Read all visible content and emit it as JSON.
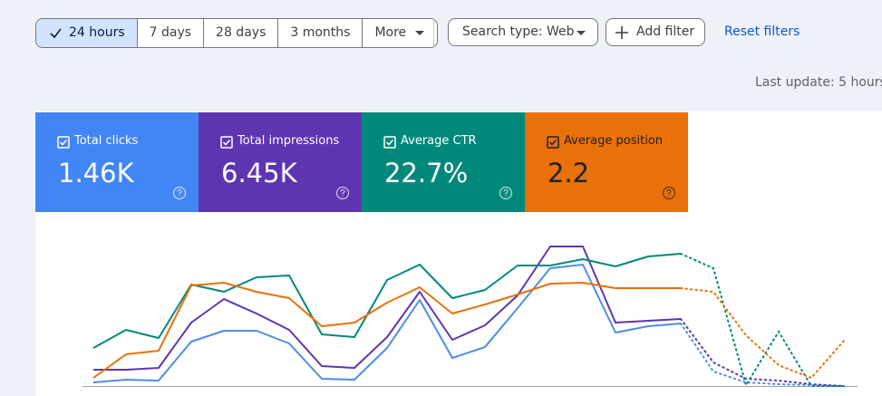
{
  "filters": {
    "time_ranges": [
      "24 hours",
      "7 days",
      "28 days",
      "3 months"
    ],
    "more": "More",
    "search_type": "Search type: Web",
    "add_filter": "Add filter",
    "reset": "Reset filters"
  },
  "last_update": "Last update: 5 hours",
  "metrics": [
    {
      "value": "1.46K",
      "color": "#4285f4"
    },
    {
      "value": "6.45K",
      "color": "#5e35b1"
    },
    {
      "value": "22.7%",
      "color": "#00897b"
    },
    {
      "value": "2.2",
      "color": "#e8710a"
    }
  ],
  "chart_data": {
    "type": "line",
    "categories": [
      null,
      null,
      null,
      null,
      null,
      null,
      null,
      null,
      null,
      null,
      null,
      null,
      null,
      null,
      null,
      null,
      null,
      null,
      null,
      null,
      null,
      null,
      null,
      null
    ],
    "ylim": [
      0,
      160
    ],
    "series": [
      {
        "name": "Total clicks",
        "color": "#4a8ee6",
        "values": [
          4,
          7,
          6,
          49,
          61,
          61,
          47,
          8,
          7,
          42,
          95,
          31,
          43,
          86,
          130,
          134,
          59,
          66,
          69,
          null,
          null,
          null,
          null,
          null
        ],
        "partial_values": [
          null,
          null,
          null,
          null,
          null,
          null,
          null,
          null,
          null,
          null,
          null,
          null,
          null,
          null,
          null,
          null,
          null,
          null,
          69,
          16,
          4,
          2,
          1,
          0
        ]
      },
      {
        "name": "Total impressions",
        "color": "#5e35b1",
        "values": [
          18,
          18,
          20,
          70,
          96,
          80,
          62,
          22,
          20,
          54,
          104,
          51,
          67,
          100,
          154,
          154,
          70,
          72,
          74,
          null,
          null,
          null,
          null,
          null
        ],
        "partial_values": [
          null,
          null,
          null,
          null,
          null,
          null,
          null,
          null,
          null,
          null,
          null,
          null,
          null,
          null,
          null,
          null,
          null,
          null,
          74,
          26,
          8,
          6,
          2,
          0
        ]
      },
      {
        "name": "Average CTR",
        "color": "#00897b",
        "values": [
          42,
          62,
          53,
          112,
          104,
          120,
          122,
          57,
          54,
          117,
          134,
          97,
          106,
          133,
          133,
          140,
          132,
          143,
          146,
          null,
          null,
          null,
          null,
          null
        ],
        "partial_values": [
          null,
          null,
          null,
          null,
          null,
          null,
          null,
          null,
          null,
          null,
          null,
          null,
          null,
          null,
          null,
          null,
          null,
          null,
          146,
          130,
          1,
          60,
          0,
          0
        ]
      },
      {
        "name": "Average position",
        "color": "#e8710a",
        "values": [
          9,
          35,
          39,
          111,
          114,
          104,
          97,
          66,
          70,
          92,
          109,
          80,
          90,
          101,
          113,
          114,
          108,
          108,
          108,
          null,
          null,
          null,
          null,
          null
        ],
        "partial_values": [
          null,
          null,
          null,
          null,
          null,
          null,
          null,
          null,
          null,
          null,
          null,
          null,
          null,
          null,
          null,
          null,
          null,
          null,
          108,
          104,
          56,
          23,
          9,
          50
        ]
      }
    ]
  }
}
